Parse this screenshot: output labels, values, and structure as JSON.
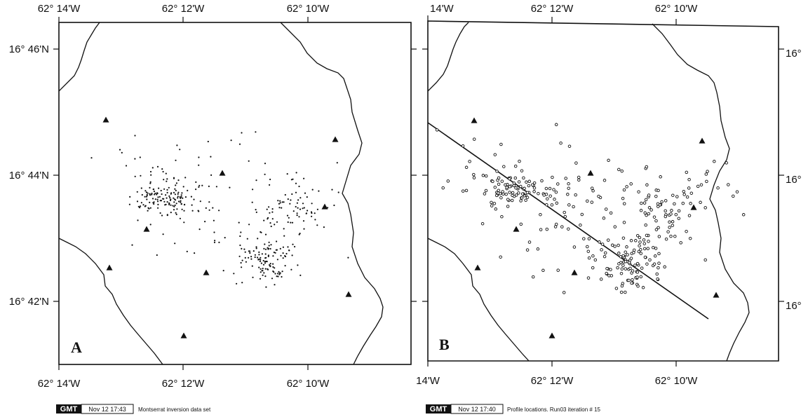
{
  "colors": {
    "ink": "#111111",
    "paper": "#ffffff"
  },
  "panels": [
    {
      "id": "A",
      "label": "A",
      "top_labels": [
        "62° 14'W",
        "62° 12'W",
        "62° 10'W"
      ],
      "bottom_labels": [
        "62° 14'W",
        "62° 12'W",
        "62° 10'W"
      ],
      "left_labels": [
        "16° 46'N",
        "16° 44'N",
        "16° 42'N"
      ],
      "right_labels": [],
      "gmt_stamp": {
        "logo": "GMT",
        "time": "Nov 12 17:43",
        "caption": "Montserrat inversion data set"
      }
    },
    {
      "id": "B",
      "label": "B",
      "top_labels": [
        "14'W",
        "62° 12'W",
        "62° 10'W"
      ],
      "bottom_labels": [
        "14'W",
        "62° 12'W",
        "62° 10'W"
      ],
      "left_labels": [],
      "right_labels": [
        "16°",
        "16°",
        "16°"
      ],
      "gmt_stamp": {
        "logo": "GMT",
        "time": "Nov 12 17:40",
        "caption": "Profile locations. Run03 iteration # 15"
      }
    }
  ]
}
